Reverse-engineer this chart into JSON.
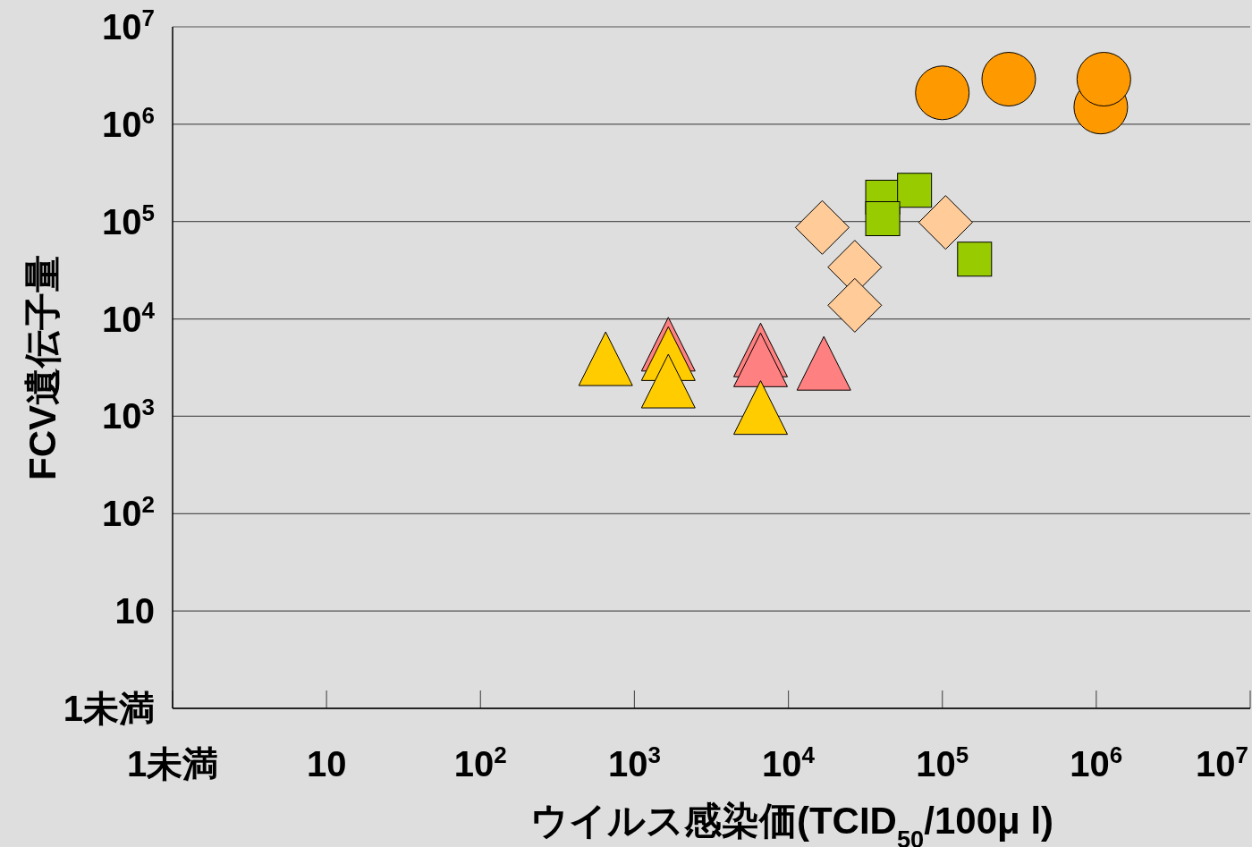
{
  "chart_data": {
    "type": "scatter",
    "xlabel": "ウイルス感染価(TCID$_{50}$/100μ l)",
    "ylabel": "FCV遺伝子量",
    "log": "xy",
    "grid": "y",
    "xlim": [
      1,
      10000000
    ],
    "ylim": [
      1,
      10000000
    ],
    "xticks": [
      {
        "value": 1,
        "label": "1未満"
      },
      10,
      {
        "value": 100,
        "label": "10$^{2}$"
      },
      {
        "value": 1000,
        "label": "10$^{3}$"
      },
      {
        "value": 10000,
        "label": "10$^{4}$"
      },
      {
        "value": 100000,
        "label": "10$^{5}$"
      },
      {
        "value": 1000000,
        "label": "10$^{6}$"
      },
      {
        "value": 10000000,
        "label": "10$^{7}$"
      }
    ],
    "yticks": [
      {
        "value": 1,
        "label": "1未満"
      },
      10,
      {
        "value": 100,
        "label": "10$^{2}$"
      },
      {
        "value": 1000,
        "label": "10$^{3}$"
      },
      {
        "value": 10000,
        "label": "10$^{4}$"
      },
      {
        "value": 100000,
        "label": "10$^{5}$"
      },
      {
        "value": 1000000,
        "label": "10$^{6}$"
      },
      {
        "value": 10000000,
        "label": "10$^{7}$"
      }
    ],
    "series": [
      {
        "type": "scatter",
        "marker": "circle",
        "color": "#ff9900",
        "x": [
          100000,
          270000,
          1070000,
          1120000
        ],
        "values": [
          2100000,
          2900000,
          1500000,
          2900000
        ]
      },
      {
        "type": "scatter",
        "marker": "square",
        "color": "#99cc00",
        "x": [
          41000,
          66000,
          41000,
          162000
        ],
        "values": [
          178000,
          209000,
          107000,
          41000
        ]
      },
      {
        "type": "scatter",
        "marker": "diamond",
        "color": "#ffcc99",
        "x": [
          16600,
          27000,
          27000,
          105000
        ],
        "values": [
          87000,
          34000,
          13800,
          98000
        ]
      },
      {
        "type": "scatter",
        "marker": "triangle",
        "color": "#ff8080",
        "x": [
          1660,
          6600,
          6600,
          17000
        ],
        "values": [
          5500,
          4800,
          3800,
          3500
        ]
      },
      {
        "type": "scatter",
        "marker": "triangle",
        "color": "#ffcc00",
        "x": [
          650,
          1660,
          1660,
          6600
        ],
        "values": [
          3900,
          4400,
          2300,
          1230
        ]
      }
    ]
  }
}
